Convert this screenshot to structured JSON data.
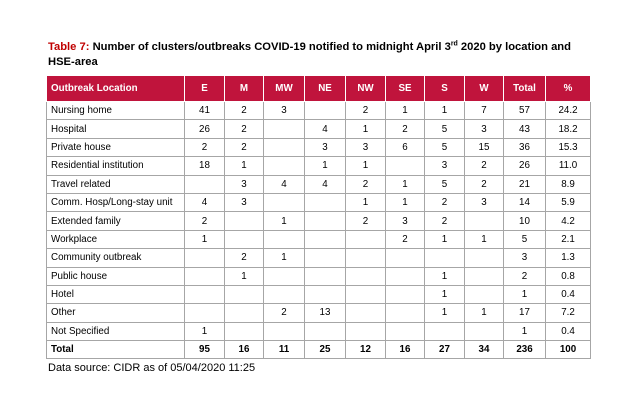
{
  "caption": {
    "label": "Table 7:",
    "text_before": "Number of clusters/outbreaks COVID-19 notified to midnight April 3",
    "superscript": "rd",
    "text_after": "2020 by location and HSE-area"
  },
  "table": {
    "headers": [
      "Outbreak Location",
      "E",
      "M",
      "MW",
      "NE",
      "NW",
      "SE",
      "S",
      "W",
      "Total",
      "%"
    ],
    "rows": [
      [
        "Nursing home",
        "41",
        "2",
        "3",
        "",
        "2",
        "1",
        "1",
        "7",
        "57",
        "24.2"
      ],
      [
        "Hospital",
        "26",
        "2",
        "",
        "4",
        "1",
        "2",
        "5",
        "3",
        "43",
        "18.2"
      ],
      [
        "Private house",
        "2",
        "2",
        "",
        "3",
        "3",
        "6",
        "5",
        "15",
        "36",
        "15.3"
      ],
      [
        "Residential institution",
        "18",
        "1",
        "",
        "1",
        "1",
        "",
        "3",
        "2",
        "26",
        "11.0"
      ],
      [
        "Travel related",
        "",
        "3",
        "4",
        "4",
        "2",
        "1",
        "5",
        "2",
        "21",
        "8.9"
      ],
      [
        "Comm. Hosp/Long-stay unit",
        "4",
        "3",
        "",
        "",
        "1",
        "1",
        "2",
        "3",
        "14",
        "5.9"
      ],
      [
        "Extended family",
        "2",
        "",
        "1",
        "",
        "2",
        "3",
        "2",
        "",
        "10",
        "4.2"
      ],
      [
        "Workplace",
        "1",
        "",
        "",
        "",
        "",
        "2",
        "1",
        "1",
        "5",
        "2.1"
      ],
      [
        "Community outbreak",
        "",
        "2",
        "1",
        "",
        "",
        "",
        "",
        "",
        "3",
        "1.3"
      ],
      [
        "Public house",
        "",
        "1",
        "",
        "",
        "",
        "",
        "1",
        "",
        "2",
        "0.8"
      ],
      [
        "Hotel",
        "",
        "",
        "",
        "",
        "",
        "",
        "1",
        "",
        "1",
        "0.4"
      ],
      [
        "Other",
        "",
        "",
        "2",
        "13",
        "",
        "",
        "1",
        "1",
        "17",
        "7.2"
      ],
      [
        "Not Specified",
        "1",
        "",
        "",
        "",
        "",
        "",
        "",
        "",
        "1",
        "0.4"
      ]
    ],
    "total_row": [
      "Total",
      "95",
      "16",
      "11",
      "25",
      "12",
      "16",
      "27",
      "34",
      "236",
      "100"
    ]
  },
  "source": "Data source: CIDR as of 05/04/2020 11:25",
  "colors": {
    "header_bg": "#c0143c",
    "caption_label": "#c00000"
  }
}
